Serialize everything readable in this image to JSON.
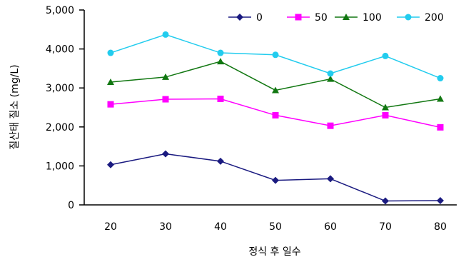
{
  "chart_data": {
    "type": "line",
    "title": "",
    "xlabel": "정식 후 일수",
    "ylabel": "질산태 질소 (mg/L)",
    "x": [
      20,
      30,
      40,
      50,
      60,
      70,
      80
    ],
    "x_tick_labels": [
      "20",
      "30",
      "40",
      "50",
      "60",
      "70",
      "80"
    ],
    "ylim": [
      0,
      5000
    ],
    "y_ticks": [
      0,
      1000,
      2000,
      3000,
      4000,
      5000
    ],
    "y_tick_labels": [
      "0",
      "1,000",
      "2,000",
      "3,000",
      "4,000",
      "5,000"
    ],
    "grid": false,
    "legend_position": "top-right",
    "series": [
      {
        "name": "0",
        "color": "#1a1a80",
        "marker": "diamond",
        "values": [
          1030,
          1310,
          1120,
          630,
          670,
          100,
          110
        ]
      },
      {
        "name": "50",
        "color": "#ff00ff",
        "marker": "square",
        "values": [
          2580,
          2710,
          2720,
          2300,
          2030,
          2300,
          1990
        ]
      },
      {
        "name": "100",
        "color": "#117711",
        "marker": "triangle",
        "values": [
          3150,
          3280,
          3680,
          2940,
          3230,
          2500,
          2720
        ]
      },
      {
        "name": "200",
        "color": "#22ccee",
        "marker": "circle",
        "values": [
          3900,
          4370,
          3900,
          3850,
          3370,
          3820,
          3250
        ]
      }
    ]
  }
}
